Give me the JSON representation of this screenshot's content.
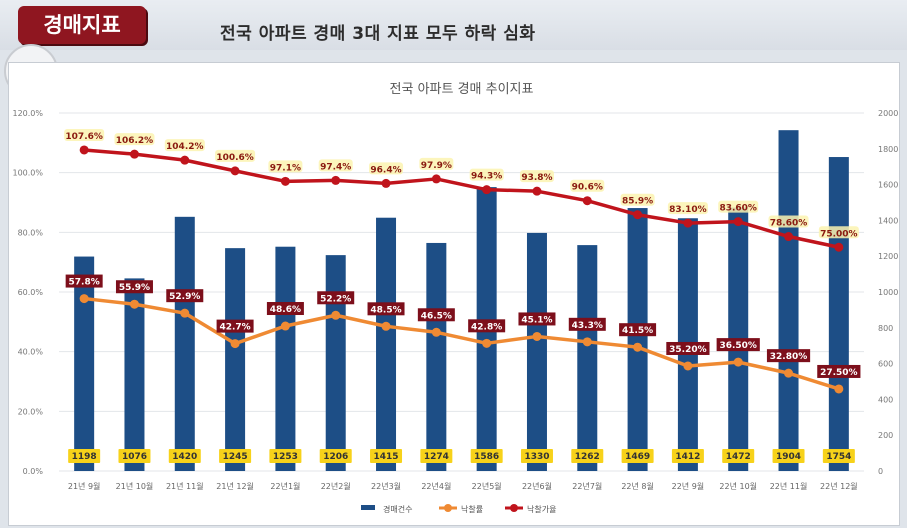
{
  "header": {
    "badge": "경매지표",
    "headline": "전국 아파트 경매 3대 지표  모두 하락 심화"
  },
  "chart_data": {
    "type": "bar+line",
    "title": "전국 아파트 경매 추이지표",
    "categories": [
      "21년 9월",
      "21년 10월",
      "21년 11월",
      "21년 12월",
      "22년1월",
      "22년2월",
      "22년3월",
      "22년4월",
      "22년5월",
      "22년6월",
      "22년7월",
      "22년 8월",
      "22년 9월",
      "22년 10월",
      "22년 11월",
      "22년 12월"
    ],
    "left_axis": {
      "min": 0,
      "max": 120,
      "ticks": [
        "0.0%",
        "20.0%",
        "40.0%",
        "60.0%",
        "80.0%",
        "100.0%",
        "120.0%"
      ]
    },
    "right_axis": {
      "min": 0,
      "max": 2000,
      "ticks": [
        "0",
        "200",
        "400",
        "600",
        "800",
        "1000",
        "1200",
        "1400",
        "1600",
        "1800",
        "2000"
      ]
    },
    "series": [
      {
        "name": "경매건수",
        "type": "bar",
        "axis": "right",
        "color": "#1d4e86",
        "values": [
          1198,
          1076,
          1420,
          1245,
          1253,
          1206,
          1415,
          1274,
          1586,
          1330,
          1262,
          1469,
          1412,
          1472,
          1904,
          1754
        ],
        "labels": [
          "1198",
          "1076",
          "1420",
          "1245",
          "1253",
          "1206",
          "1415",
          "1274",
          "1586",
          "1330",
          "1262",
          "1469",
          "1412",
          "1472",
          "1904",
          "1754"
        ]
      },
      {
        "name": "낙찰률",
        "type": "line",
        "axis": "left",
        "color": "#ef8a33",
        "values": [
          57.8,
          55.9,
          52.9,
          42.7,
          48.6,
          52.2,
          48.5,
          46.5,
          42.8,
          45.1,
          43.3,
          41.5,
          35.2,
          36.5,
          32.8,
          27.5
        ],
        "labels": [
          "57.8%",
          "55.9%",
          "52.9%",
          "42.7%",
          "48.6%",
          "52.2%",
          "48.5%",
          "46.5%",
          "42.8%",
          "45.1%",
          "43.3%",
          "41.5%",
          "35.20%",
          "36.50%",
          "32.80%",
          "27.50%"
        ]
      },
      {
        "name": "낙찰가율",
        "type": "line",
        "axis": "left",
        "color": "#c0141c",
        "values": [
          107.6,
          106.2,
          104.2,
          100.6,
          97.1,
          97.4,
          96.4,
          97.9,
          94.3,
          93.8,
          90.6,
          85.9,
          83.1,
          83.6,
          78.6,
          75.0
        ],
        "labels": [
          "107.6%",
          "106.2%",
          "104.2%",
          "100.6%",
          "97.1%",
          "97.4%",
          "96.4%",
          "97.9%",
          "94.3%",
          "93.8%",
          "90.6%",
          "85.9%",
          "83.10%",
          "83.60%",
          "78.60%",
          "75.00%"
        ]
      }
    ],
    "legend_position": "bottom-center"
  }
}
